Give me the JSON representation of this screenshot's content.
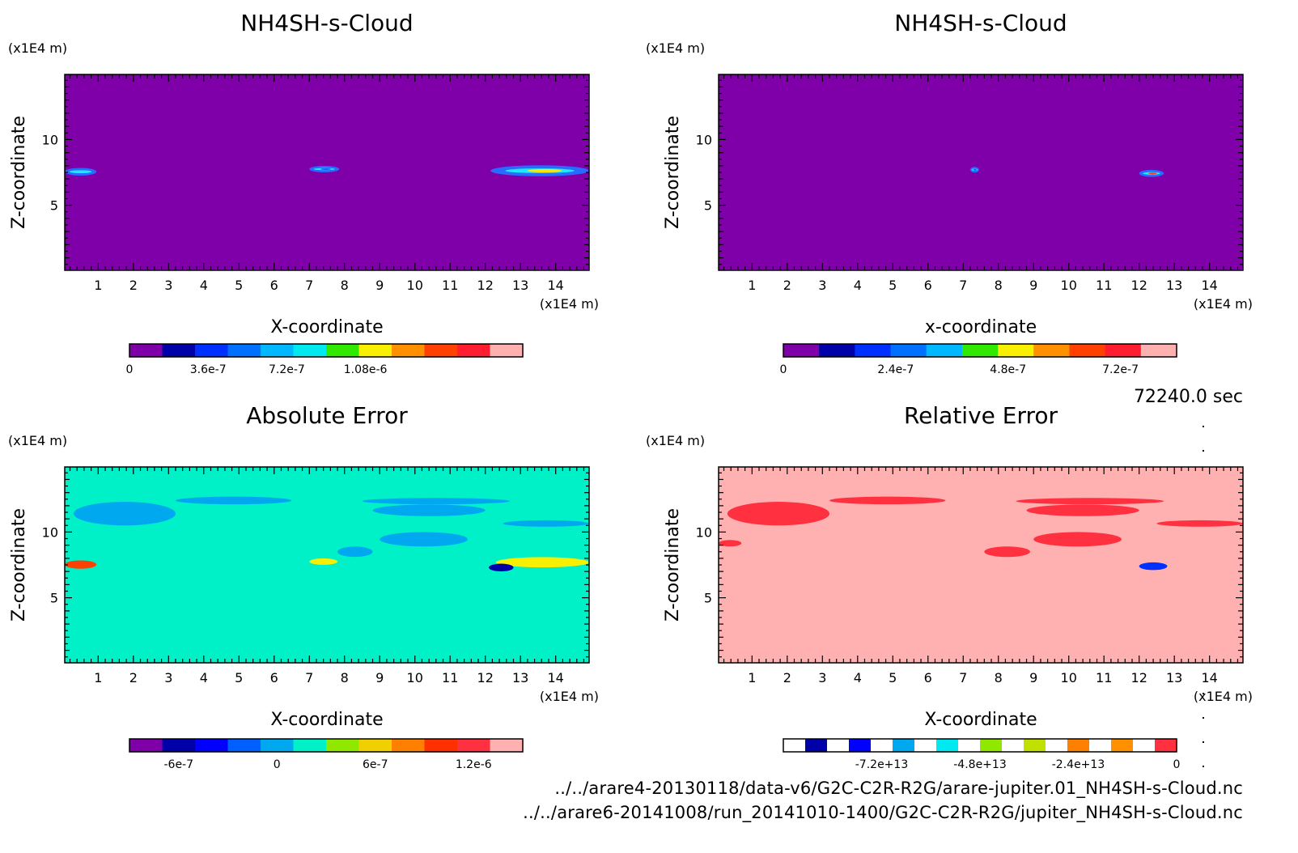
{
  "time_label": "72240.0 sec",
  "file_paths": [
    "../../arare4-20130118/data-v6/G2C-C2R-R2G/arare-jupiter.01_NH4SH-s-Cloud.nc",
    "../../arare6-20141008/run_20141010-1400/G2C-C2R-R2G/jupiter_NH4SH-s-Cloud.nc"
  ],
  "chart_data": [
    {
      "type": "heatmap",
      "title": "NH4SH-s-Cloud",
      "xlabel": "X-coordinate",
      "ylabel": "Z-coordinate",
      "x_unit": "(x1E4 m)",
      "y_unit": "(x1E4 m)",
      "xlim": [
        0.05,
        14.95
      ],
      "ylim": [
        0.05,
        14.95
      ],
      "xticks": [
        1,
        2,
        3,
        4,
        5,
        6,
        7,
        8,
        9,
        10,
        11,
        12,
        13,
        14
      ],
      "yticks": [
        5,
        10
      ],
      "background_color": "#7f00a9",
      "features": [
        {
          "x": [
            0.05,
            0.95
          ],
          "z": [
            7.35,
            7.75
          ],
          "peak": "#1ee8ff"
        },
        {
          "x": [
            7.0,
            7.85
          ],
          "z": [
            7.6,
            7.9
          ],
          "peak": "#1a5bff"
        },
        {
          "x": [
            12.15,
            14.95
          ],
          "z": [
            7.3,
            7.95
          ],
          "peak": "#ffe500"
        }
      ],
      "colorbar": {
        "colors": [
          "#7f00a9",
          "#0000a8",
          "#0030ff",
          "#0070ff",
          "#00b8ff",
          "#00e8f0",
          "#30e800",
          "#f8f000",
          "#ff9000",
          "#ff4000",
          "#ff1e30",
          "#ffb0b0"
        ],
        "tick_labels": [
          "0",
          "3.6e-7",
          "7.2e-7",
          "1.08e-6"
        ],
        "tick_values": [
          0,
          3.6e-07,
          7.2e-07,
          1.08e-06
        ],
        "range": [
          0,
          1.8e-06
        ]
      }
    },
    {
      "type": "heatmap",
      "title": "NH4SH-s-Cloud",
      "xlabel": "x-coordinate",
      "ylabel": "Z-coordinate",
      "x_unit": "(x1E4 m)",
      "y_unit": "(x1E4 m)",
      "xlim": [
        0.05,
        14.95
      ],
      "ylim": [
        0.05,
        14.95
      ],
      "xticks": [
        1,
        2,
        3,
        4,
        5,
        6,
        7,
        8,
        9,
        10,
        11,
        12,
        13,
        14
      ],
      "yticks": [
        5,
        10
      ],
      "background_color": "#7f00a9",
      "features": [
        {
          "x": [
            7.2,
            7.45
          ],
          "z": [
            7.65,
            7.75
          ],
          "peak": "#1a5bff"
        },
        {
          "x": [
            12.0,
            12.7
          ],
          "z": [
            7.25,
            7.6
          ],
          "peak": "#ff4000"
        }
      ],
      "colorbar": {
        "colors": [
          "#7f00a9",
          "#0000a8",
          "#0030ff",
          "#0070ff",
          "#00b8ff",
          "#30e800",
          "#f8f000",
          "#ff9000",
          "#ff4000",
          "#ff1e30",
          "#ffb0b0"
        ],
        "tick_labels": [
          "0",
          "2.4e-7",
          "4.8e-7",
          "7.2e-7"
        ],
        "tick_values": [
          0,
          2.4e-07,
          4.8e-07,
          7.2e-07
        ],
        "range": [
          0,
          8.4e-07
        ]
      }
    },
    {
      "type": "heatmap",
      "title": "Absolute Error",
      "xlabel": "X-coordinate",
      "ylabel": "Z-coordinate",
      "x_unit": "(x1E4 m)",
      "y_unit": "(x1E4 m)",
      "xlim": [
        0.05,
        14.95
      ],
      "ylim": [
        0.05,
        14.95
      ],
      "xticks": [
        1,
        2,
        3,
        4,
        5,
        6,
        7,
        8,
        9,
        10,
        11,
        12,
        13,
        14
      ],
      "yticks": [
        5,
        10
      ],
      "background_color": "#00f0c8",
      "features": [
        {
          "x": [
            0.3,
            3.2
          ],
          "z": [
            10.5,
            12.3
          ],
          "peak": "#00a8f0"
        },
        {
          "x": [
            3.2,
            6.5
          ],
          "z": [
            12.2,
            12.6
          ],
          "peak": "#00a8f0"
        },
        {
          "x": [
            8.5,
            12.7
          ],
          "z": [
            12.2,
            12.5
          ],
          "peak": "#00a8f0"
        },
        {
          "x": [
            8.8,
            12.0
          ],
          "z": [
            11.3,
            12.0
          ],
          "peak": "#00a8f0"
        },
        {
          "x": [
            9.0,
            11.5
          ],
          "z": [
            8.9,
            10.0
          ],
          "peak": "#00a8f0"
        },
        {
          "x": [
            12.5,
            14.95
          ],
          "z": [
            10.5,
            10.8
          ],
          "peak": "#00a8f0"
        },
        {
          "x": [
            7.8,
            8.8
          ],
          "z": [
            8.2,
            8.8
          ],
          "peak": "#00a8f0"
        },
        {
          "x": [
            0.05,
            0.95
          ],
          "z": [
            7.3,
            7.75
          ],
          "peak": "#ff4000"
        },
        {
          "x": [
            7.0,
            7.8
          ],
          "z": [
            7.6,
            7.9
          ],
          "peak": "#f8f000"
        },
        {
          "x": [
            12.3,
            14.95
          ],
          "z": [
            7.4,
            8.0
          ],
          "peak": "#f8f000"
        },
        {
          "x": [
            12.1,
            12.8
          ],
          "z": [
            7.1,
            7.5
          ],
          "peak": "#0000a8"
        }
      ],
      "colorbar": {
        "colors": [
          "#7f00a9",
          "#0000a8",
          "#0000ff",
          "#0060ff",
          "#00a8f0",
          "#00f0c8",
          "#90e800",
          "#f0d000",
          "#ff8000",
          "#ff3000",
          "#ff3040",
          "#ffb0b0"
        ],
        "tick_labels": [
          "-6e-7",
          "0",
          "6e-7",
          "1.2e-6"
        ],
        "tick_values": [
          -6e-07,
          0,
          6e-07,
          1.2e-06
        ],
        "range": [
          -9e-07,
          1.5e-06
        ]
      }
    },
    {
      "type": "heatmap",
      "title": "Relative Error",
      "xlabel": "X-coordinate",
      "ylabel": "Z-coordinate",
      "x_unit": "(x1E4 m)",
      "y_unit": "(x1E4 m)",
      "xlim": [
        0.05,
        14.95
      ],
      "ylim": [
        0.05,
        14.95
      ],
      "xticks": [
        1,
        2,
        3,
        4,
        5,
        6,
        7,
        8,
        9,
        10,
        11,
        12,
        13,
        14
      ],
      "yticks": [
        5,
        10
      ],
      "background_color": "#ffb0b0",
      "features": [
        {
          "x": [
            0.3,
            3.2
          ],
          "z": [
            10.5,
            12.3
          ],
          "peak": "#ff3040"
        },
        {
          "x": [
            3.2,
            6.5
          ],
          "z": [
            12.2,
            12.6
          ],
          "peak": "#ff3040"
        },
        {
          "x": [
            8.5,
            12.7
          ],
          "z": [
            12.2,
            12.5
          ],
          "peak": "#ff3040"
        },
        {
          "x": [
            8.8,
            12.0
          ],
          "z": [
            11.3,
            12.0
          ],
          "peak": "#ff3040"
        },
        {
          "x": [
            9.0,
            11.5
          ],
          "z": [
            8.9,
            10.0
          ],
          "peak": "#ff3040"
        },
        {
          "x": [
            7.6,
            8.9
          ],
          "z": [
            8.1,
            8.9
          ],
          "peak": "#ff3040"
        },
        {
          "x": [
            12.5,
            14.95
          ],
          "z": [
            10.5,
            10.8
          ],
          "peak": "#ff3040"
        },
        {
          "x": [
            0.05,
            0.7
          ],
          "z": [
            9.0,
            9.3
          ],
          "peak": "#ff3040"
        },
        {
          "x": [
            12.0,
            12.8
          ],
          "z": [
            7.2,
            7.6
          ],
          "peak": "#0030ff"
        }
      ],
      "colorbar": {
        "colors": [
          "#ffffff",
          "#0000a8",
          "#ffffff",
          "#0000ff",
          "#ffffff",
          "#00a8f0",
          "#ffffff",
          "#00e8f0",
          "#ffffff",
          "#90e800",
          "#ffffff",
          "#c0e000",
          "#ffffff",
          "#ff8000",
          "#ffffff",
          "#ff9000",
          "#ffffff",
          "#ff3040"
        ],
        "tick_labels": [
          "-7.2e+13",
          "-4.8e+13",
          "-2.4e+13",
          "0"
        ],
        "tick_values": [
          -72000000000000.0,
          -48000000000000.0,
          -24000000000000.0,
          0
        ],
        "range": [
          -96000000000000.0,
          0
        ]
      }
    }
  ]
}
